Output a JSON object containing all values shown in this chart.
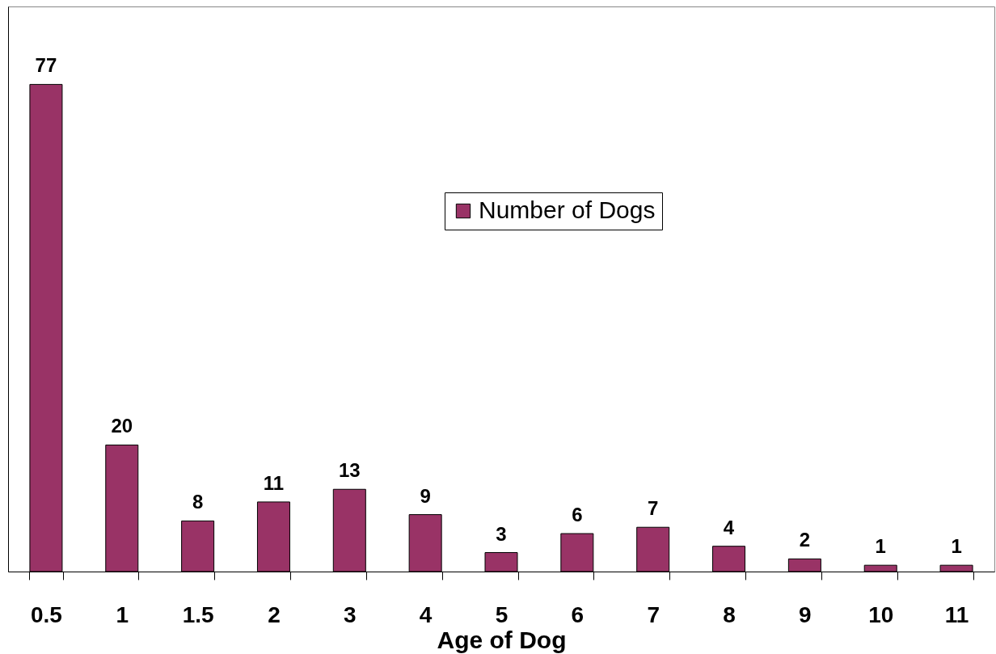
{
  "chart_data": {
    "type": "bar",
    "xlabel": "Age of Dog",
    "categories": [
      "0.5",
      "1",
      "1.5",
      "2",
      "3",
      "4",
      "5",
      "6",
      "7",
      "8",
      "9",
      "10",
      "11"
    ],
    "series": [
      {
        "name": "Number of Dogs",
        "color": "#993366",
        "values": [
          77,
          20,
          8,
          11,
          13,
          9,
          3,
          6,
          7,
          4,
          2,
          1,
          1
        ]
      }
    ],
    "data_labels": true,
    "legend": "top",
    "grid": false
  }
}
